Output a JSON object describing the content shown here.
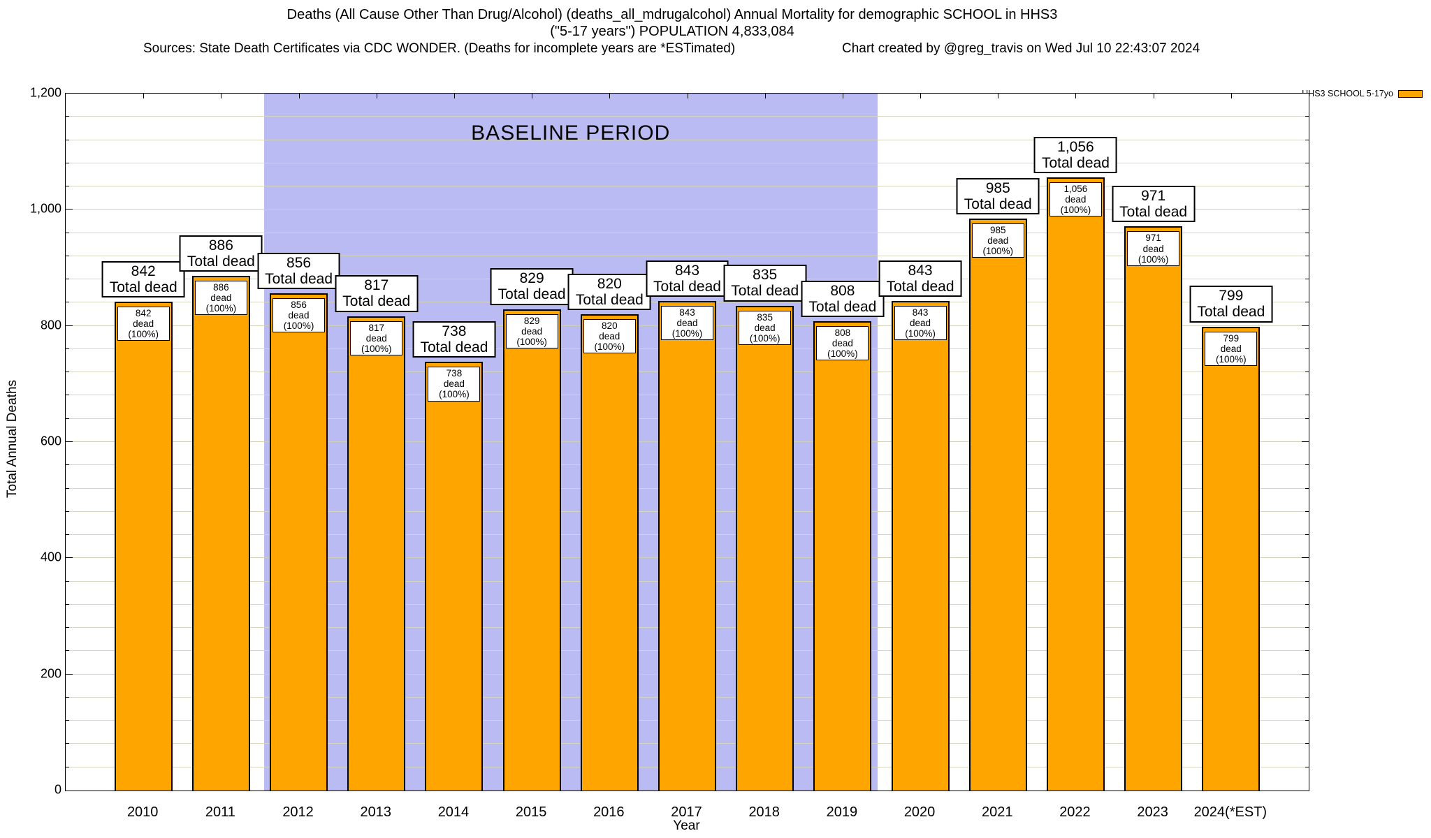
{
  "header": {
    "title_line1": "Deaths (All Cause Other Than Drug/Alcohol) (deaths_all_mdrugalcohol) Annual Mortality for demographic SCHOOL in HHS3",
    "title_line2": "(\"5-17 years\") POPULATION 4,833,084",
    "sources": "Sources: State Death Certificates via CDC WONDER. (Deaths for incomplete years are *ESTimated)",
    "created_by": "Chart created by @greg_travis on Wed Jul 10 22:43:07 2024"
  },
  "legend": {
    "label": "HHS3 SCHOOL 5-17yo",
    "swatch_color": "#FFA500"
  },
  "chart_data": {
    "type": "bar",
    "title": "Deaths (All Cause Other Than Drug/Alcohol) (deaths_all_mdrugalcohol) Annual Mortality for demographic SCHOOL in HHS3 (\"5-17 years\") POPULATION 4,833,084",
    "xlabel": "Year",
    "ylabel": "Total Annual Deaths",
    "categories": [
      "2010",
      "2011",
      "2012",
      "2013",
      "2014",
      "2015",
      "2016",
      "2017",
      "2018",
      "2019",
      "2020",
      "2021",
      "2022",
      "2023",
      "2024(*EST)"
    ],
    "values": [
      842,
      886,
      856,
      817,
      738,
      829,
      820,
      843,
      835,
      808,
      843,
      985,
      1056,
      971,
      799
    ],
    "bar_color": "#FFA500",
    "bar_border_color": "#000000",
    "ylim": [
      0,
      1200
    ],
    "ytick_interval": 200,
    "minor_tick_interval": 40,
    "grid": true,
    "legend_position": "top-right-outside",
    "bar_label_above_suffix": "Total dead",
    "bar_label_inner_suffix": "dead (100%)",
    "baseline_band": {
      "label": "BASELINE PERIOD",
      "start_category": "2012",
      "end_category": "2019",
      "color": "#BBBBF3"
    }
  }
}
